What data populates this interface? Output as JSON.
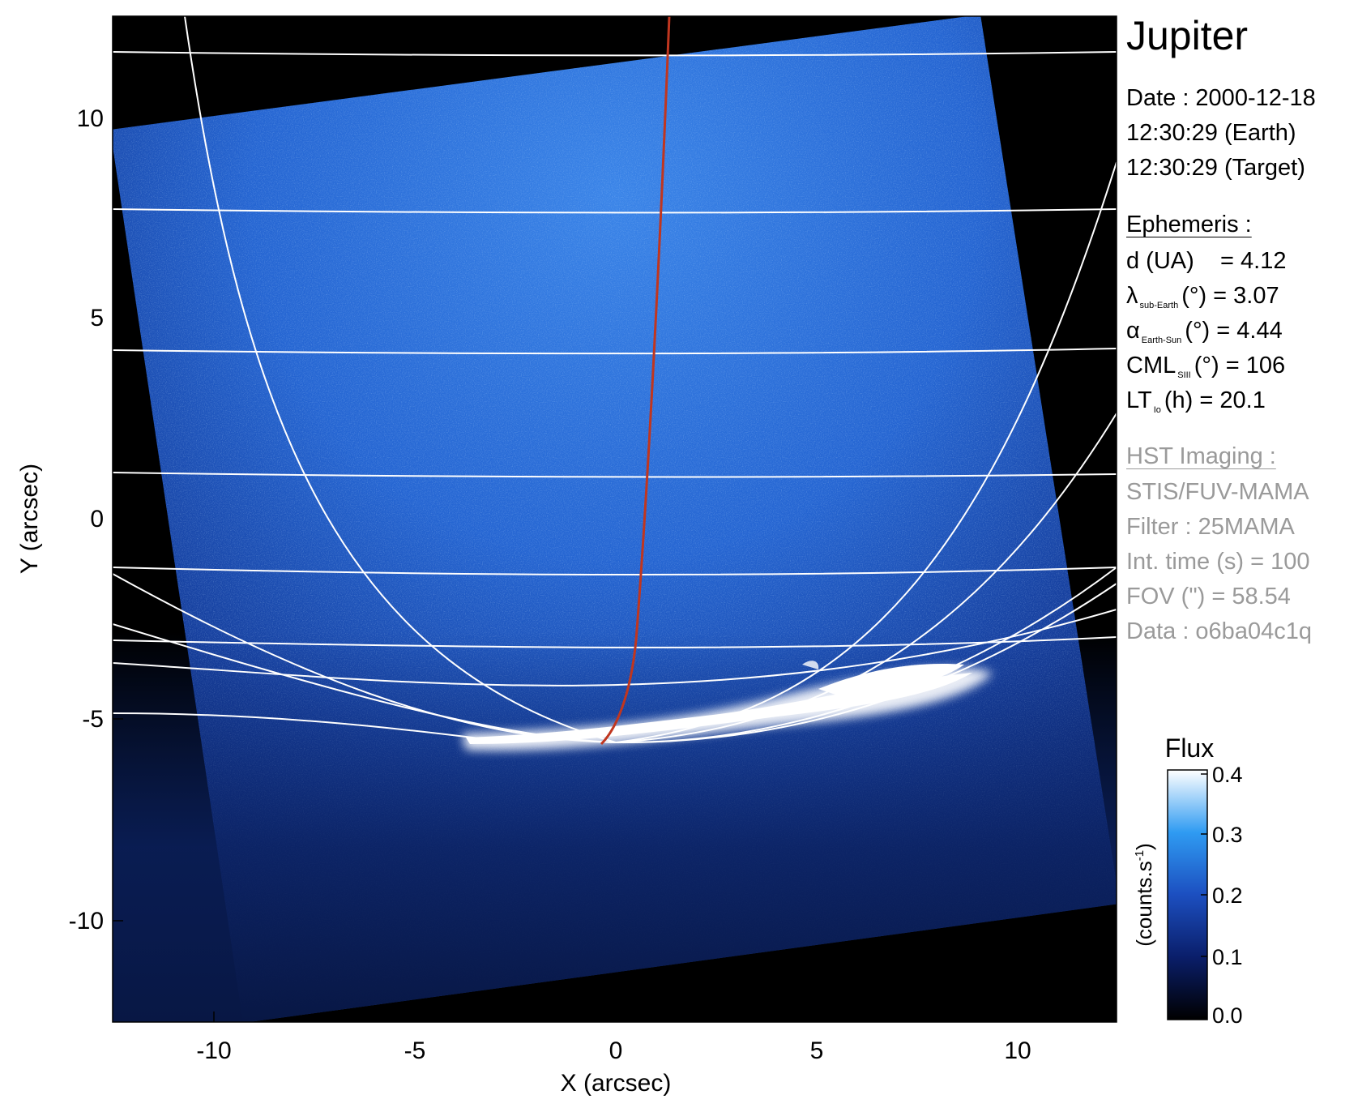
{
  "figure": {
    "target": "Jupiter",
    "xlabel": "X (arcsec)",
    "ylabel": "Y (arcsec)",
    "xticks": [
      "-10",
      "-5",
      "0",
      "5",
      "10"
    ],
    "yticks": [
      "10",
      "5",
      "0",
      "-5",
      "-10"
    ],
    "xlim": [
      -12.5,
      12.5
    ],
    "ylim": [
      -12.5,
      12.5
    ]
  },
  "info": {
    "date_line": "Date : 2000-12-18",
    "time_earth": "12:30:29 (Earth)",
    "time_target": "12:30:29 (Target)",
    "ephemeris_header": "Ephemeris :",
    "d_label": "d (UA)",
    "d_value": "= 4.12",
    "lambda_symbol": "λ",
    "lambda_sub": "sub-Earth",
    "lambda_value": "(°) = 3.07",
    "alpha_symbol": "α",
    "alpha_sub": "Earth-Sun",
    "alpha_value": "(°) = 4.44",
    "cml_label": "CML",
    "cml_sub": "SIII",
    "cml_value": "(°) = 106",
    "lt_label": "LT",
    "lt_sub": "Io",
    "lt_value": "(h) = 20.1",
    "hst_header": "HST Imaging :",
    "instrument": "STIS/FUV-MAMA",
    "filter": "Filter : 25MAMA",
    "int_time": "Int. time (s) = 100",
    "fov": "FOV (\") = 58.54",
    "data_id": "Data : o6ba04c1q"
  },
  "colorbar": {
    "title": "Flux",
    "unit_label": "(counts.s",
    "unit_sup": "-1",
    "unit_close": ")",
    "ticks": [
      "0.4",
      "0.3",
      "0.2",
      "0.1",
      "0.0"
    ],
    "range": [
      0.0,
      0.4
    ]
  },
  "colors": {
    "image_dark": "#0a1a5a",
    "image_mid": "#1f5fd0",
    "image_light": "#8cc4ff",
    "grid": "#ffffff",
    "io_footprint": "#c0361f",
    "hst_text": "#9a9a9a"
  }
}
